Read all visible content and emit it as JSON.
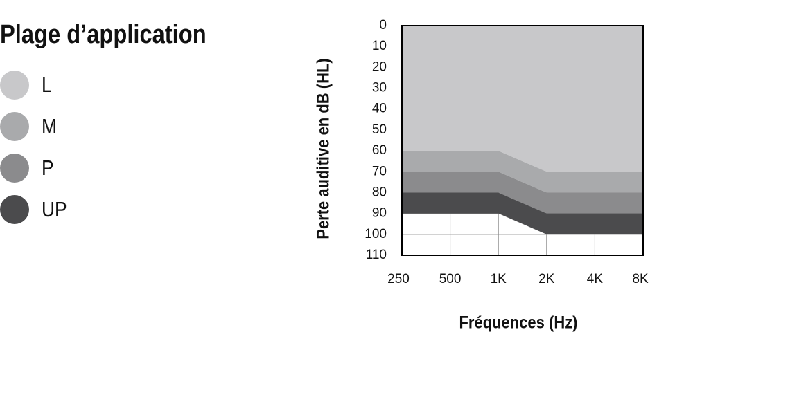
{
  "chart_data": {
    "type": "area",
    "title": "Plage d’application",
    "x_label": "Fréquences (Hz)",
    "y_label": "Perte auditive en dB (HL)",
    "categories": [
      "250",
      "500",
      "1K",
      "2K",
      "4K",
      "8K"
    ],
    "series": [
      {
        "name": "L",
        "color": "#c8c8ca",
        "values": [
          60,
          60,
          60,
          70,
          70,
          70
        ]
      },
      {
        "name": "M",
        "color": "#a9aaac",
        "values": [
          70,
          70,
          70,
          80,
          80,
          80
        ]
      },
      {
        "name": "P",
        "color": "#8b8b8d",
        "values": [
          80,
          80,
          80,
          90,
          90,
          90
        ]
      },
      {
        "name": "UP",
        "color": "#4b4b4d",
        "values": [
          90,
          90,
          90,
          100,
          100,
          100
        ]
      }
    ],
    "ylim": [
      0,
      110
    ],
    "yticks": [
      0,
      10,
      20,
      30,
      40,
      50,
      60,
      70,
      80,
      90,
      100,
      110
    ],
    "y_inverted": true,
    "grid": true
  }
}
